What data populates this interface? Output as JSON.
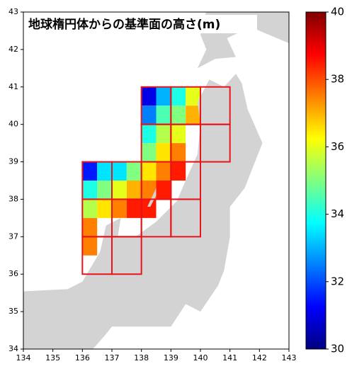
{
  "chart_data": {
    "type": "heatmap",
    "title": "地球楕円体からの基準面の高さ(m)",
    "xlim": [
      134,
      143
    ],
    "ylim": [
      34,
      43
    ],
    "xticks": [
      134,
      135,
      136,
      137,
      138,
      139,
      140,
      141,
      142,
      143
    ],
    "yticks": [
      34,
      35,
      36,
      37,
      38,
      39,
      40,
      41,
      42,
      43
    ],
    "clim": [
      30,
      40
    ],
    "cticks": [
      30,
      32,
      34,
      36,
      38,
      40
    ],
    "colormap": "jet",
    "land_color": "#d3d3d3",
    "tile_color": "#e8141c",
    "tiles": [
      {
        "lon": 138,
        "lat": 40,
        "values": [
          31,
          33,
          32.5,
          34.5
        ]
      },
      {
        "lon": 139,
        "lat": 40,
        "values": [
          34,
          36,
          35,
          37
        ]
      },
      {
        "lon": 140,
        "lat": 40,
        "values": [
          null,
          null,
          null,
          null
        ]
      },
      {
        "lon": 138,
        "lat": 39,
        "values": [
          34,
          35.5,
          35,
          36.5
        ]
      },
      {
        "lon": 139,
        "lat": 39,
        "values": [
          36,
          null,
          37.5,
          null
        ]
      },
      {
        "lon": 140,
        "lat": 39,
        "values": [
          null,
          null,
          null,
          null
        ]
      },
      {
        "lon": 136,
        "lat": 38,
        "values": [
          31.5,
          33.5,
          34,
          35
        ]
      },
      {
        "lon": 137,
        "lat": 38,
        "values": [
          33.5,
          35,
          36,
          37
        ]
      },
      {
        "lon": 138,
        "lat": 38,
        "values": [
          36.5,
          37.5,
          37.5,
          38.5
        ]
      },
      {
        "lon": 139,
        "lat": 38,
        "values": [
          38.5,
          null,
          null,
          null
        ]
      },
      {
        "lon": 136,
        "lat": 37,
        "values": [
          35.5,
          36.5,
          37.5,
          null
        ]
      },
      {
        "lon": 137,
        "lat": 37,
        "values": [
          37.5,
          38.5,
          null,
          null
        ]
      },
      {
        "lon": 138,
        "lat": 37,
        "values": [
          38.5,
          null,
          null,
          null
        ]
      },
      {
        "lon": 139,
        "lat": 37,
        "values": [
          null,
          null,
          null,
          null
        ]
      },
      {
        "lon": 136,
        "lat": 36,
        "values": [
          37.5,
          null,
          null,
          null
        ]
      },
      {
        "lon": 137,
        "lat": 36,
        "values": [
          null,
          null,
          null,
          null
        ]
      }
    ]
  }
}
